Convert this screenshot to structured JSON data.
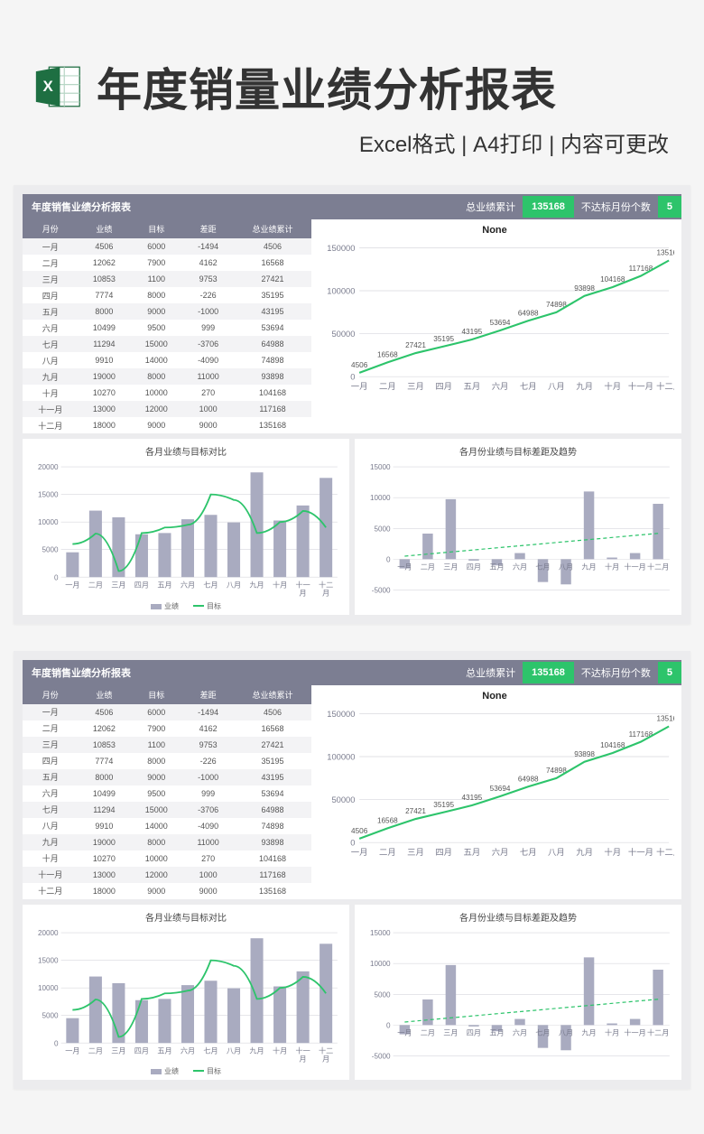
{
  "hero": {
    "title": "年度销量业绩分析报表",
    "subtitle": "Excel格式 | A4打印 | 内容可更改",
    "icon_bg": "#1e6f42",
    "icon_fg": "#ffffff"
  },
  "report": {
    "title": "年度销售业绩分析报表",
    "summary": {
      "total_label": "总业绩累计",
      "total_value": "135168",
      "miss_label": "不达标月份个数",
      "miss_value": "5"
    },
    "table": {
      "columns": [
        "月份",
        "业绩",
        "目标",
        "差距",
        "总业绩累计"
      ],
      "rows": [
        [
          "一月",
          "4506",
          "6000",
          "-1494",
          "4506"
        ],
        [
          "二月",
          "12062",
          "7900",
          "4162",
          "16568"
        ],
        [
          "三月",
          "10853",
          "1100",
          "9753",
          "27421"
        ],
        [
          "四月",
          "7774",
          "8000",
          "-226",
          "35195"
        ],
        [
          "五月",
          "8000",
          "9000",
          "-1000",
          "43195"
        ],
        [
          "六月",
          "10499",
          "9500",
          "999",
          "53694"
        ],
        [
          "七月",
          "11294",
          "15000",
          "-3706",
          "64988"
        ],
        [
          "八月",
          "9910",
          "14000",
          "-4090",
          "74898"
        ],
        [
          "九月",
          "19000",
          "8000",
          "11000",
          "93898"
        ],
        [
          "十月",
          "10270",
          "10000",
          "270",
          "104168"
        ],
        [
          "十一月",
          "13000",
          "12000",
          "1000",
          "117168"
        ],
        [
          "十二月",
          "18000",
          "9000",
          "9000",
          "135168"
        ]
      ]
    },
    "months": [
      "一月",
      "二月",
      "三月",
      "四月",
      "五月",
      "六月",
      "七月",
      "八月",
      "九月",
      "十月",
      "十一月",
      "十二月"
    ],
    "cumulative": {
      "title": "None",
      "values": [
        4506,
        16568,
        27421,
        35195,
        43195,
        53694,
        64988,
        74898,
        93898,
        104168,
        117168,
        135168
      ],
      "ylim": [
        0,
        150000
      ],
      "ytick_step": 50000,
      "line_color": "#2dc46b",
      "grid_color": "#d8d8de",
      "label_fontsize": 7
    },
    "compare": {
      "title": "各月业绩与目标对比",
      "actual": [
        4506,
        12062,
        10853,
        7774,
        8000,
        10499,
        11294,
        9910,
        19000,
        10270,
        13000,
        18000
      ],
      "target": [
        6000,
        7900,
        1100,
        8000,
        9000,
        9500,
        15000,
        14000,
        8000,
        10000,
        12000,
        9000
      ],
      "ylim": [
        0,
        20000
      ],
      "ytick_step": 5000,
      "bar_color": "#a9abc0",
      "line_color": "#2dc46b",
      "legend": {
        "actual": "业绩",
        "target": "目标"
      }
    },
    "gap": {
      "title": "各月份业绩与目标差距及趋势",
      "values": [
        -1494,
        4162,
        9753,
        -226,
        -1000,
        999,
        -3706,
        -4090,
        11000,
        270,
        1000,
        9000
      ],
      "trend_start": 500,
      "trend_end": 4200,
      "ylim": [
        -5000,
        15000
      ],
      "ytick_step": 5000,
      "bar_color": "#a9abc0",
      "trend_color": "#2dc46b"
    }
  },
  "colors": {
    "header_bg": "#7c7e92",
    "accent": "#2dc46b",
    "bar": "#a9abc0",
    "grid": "#d8d8de"
  }
}
